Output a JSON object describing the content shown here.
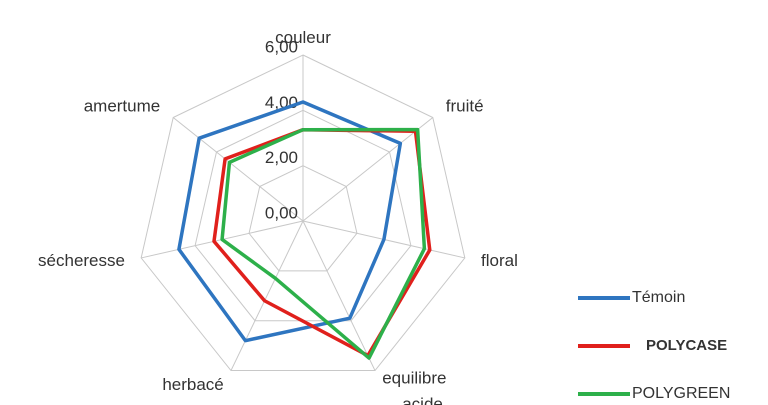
{
  "chart_data": {
    "type": "radar",
    "categories": [
      "couleur",
      "fruité",
      "floral",
      "equilibre acide",
      "herbacé",
      "sécheresse",
      "amertume"
    ],
    "series": [
      {
        "name": "Témoin",
        "color": "#2e75c0",
        "values": [
          4.3,
          4.5,
          3.0,
          3.9,
          4.8,
          4.6,
          4.8
        ]
      },
      {
        "name": "POLYCASE",
        "color": "#e0201c",
        "values": [
          3.3,
          5.2,
          4.7,
          5.4,
          3.2,
          3.3,
          3.6
        ]
      },
      {
        "name": "POLYGREEN",
        "color": "#2db04a",
        "values": [
          3.3,
          5.3,
          4.5,
          5.5,
          2.3,
          3.0,
          3.4
        ]
      }
    ],
    "ylim": [
      0,
      6
    ],
    "yticks": [
      {
        "value": 0,
        "label": "0,00"
      },
      {
        "value": 2,
        "label": "2,00"
      },
      {
        "value": 4,
        "label": "4,00"
      },
      {
        "value": 6,
        "label": "6,00"
      }
    ],
    "grid": true,
    "legend": "right"
  }
}
